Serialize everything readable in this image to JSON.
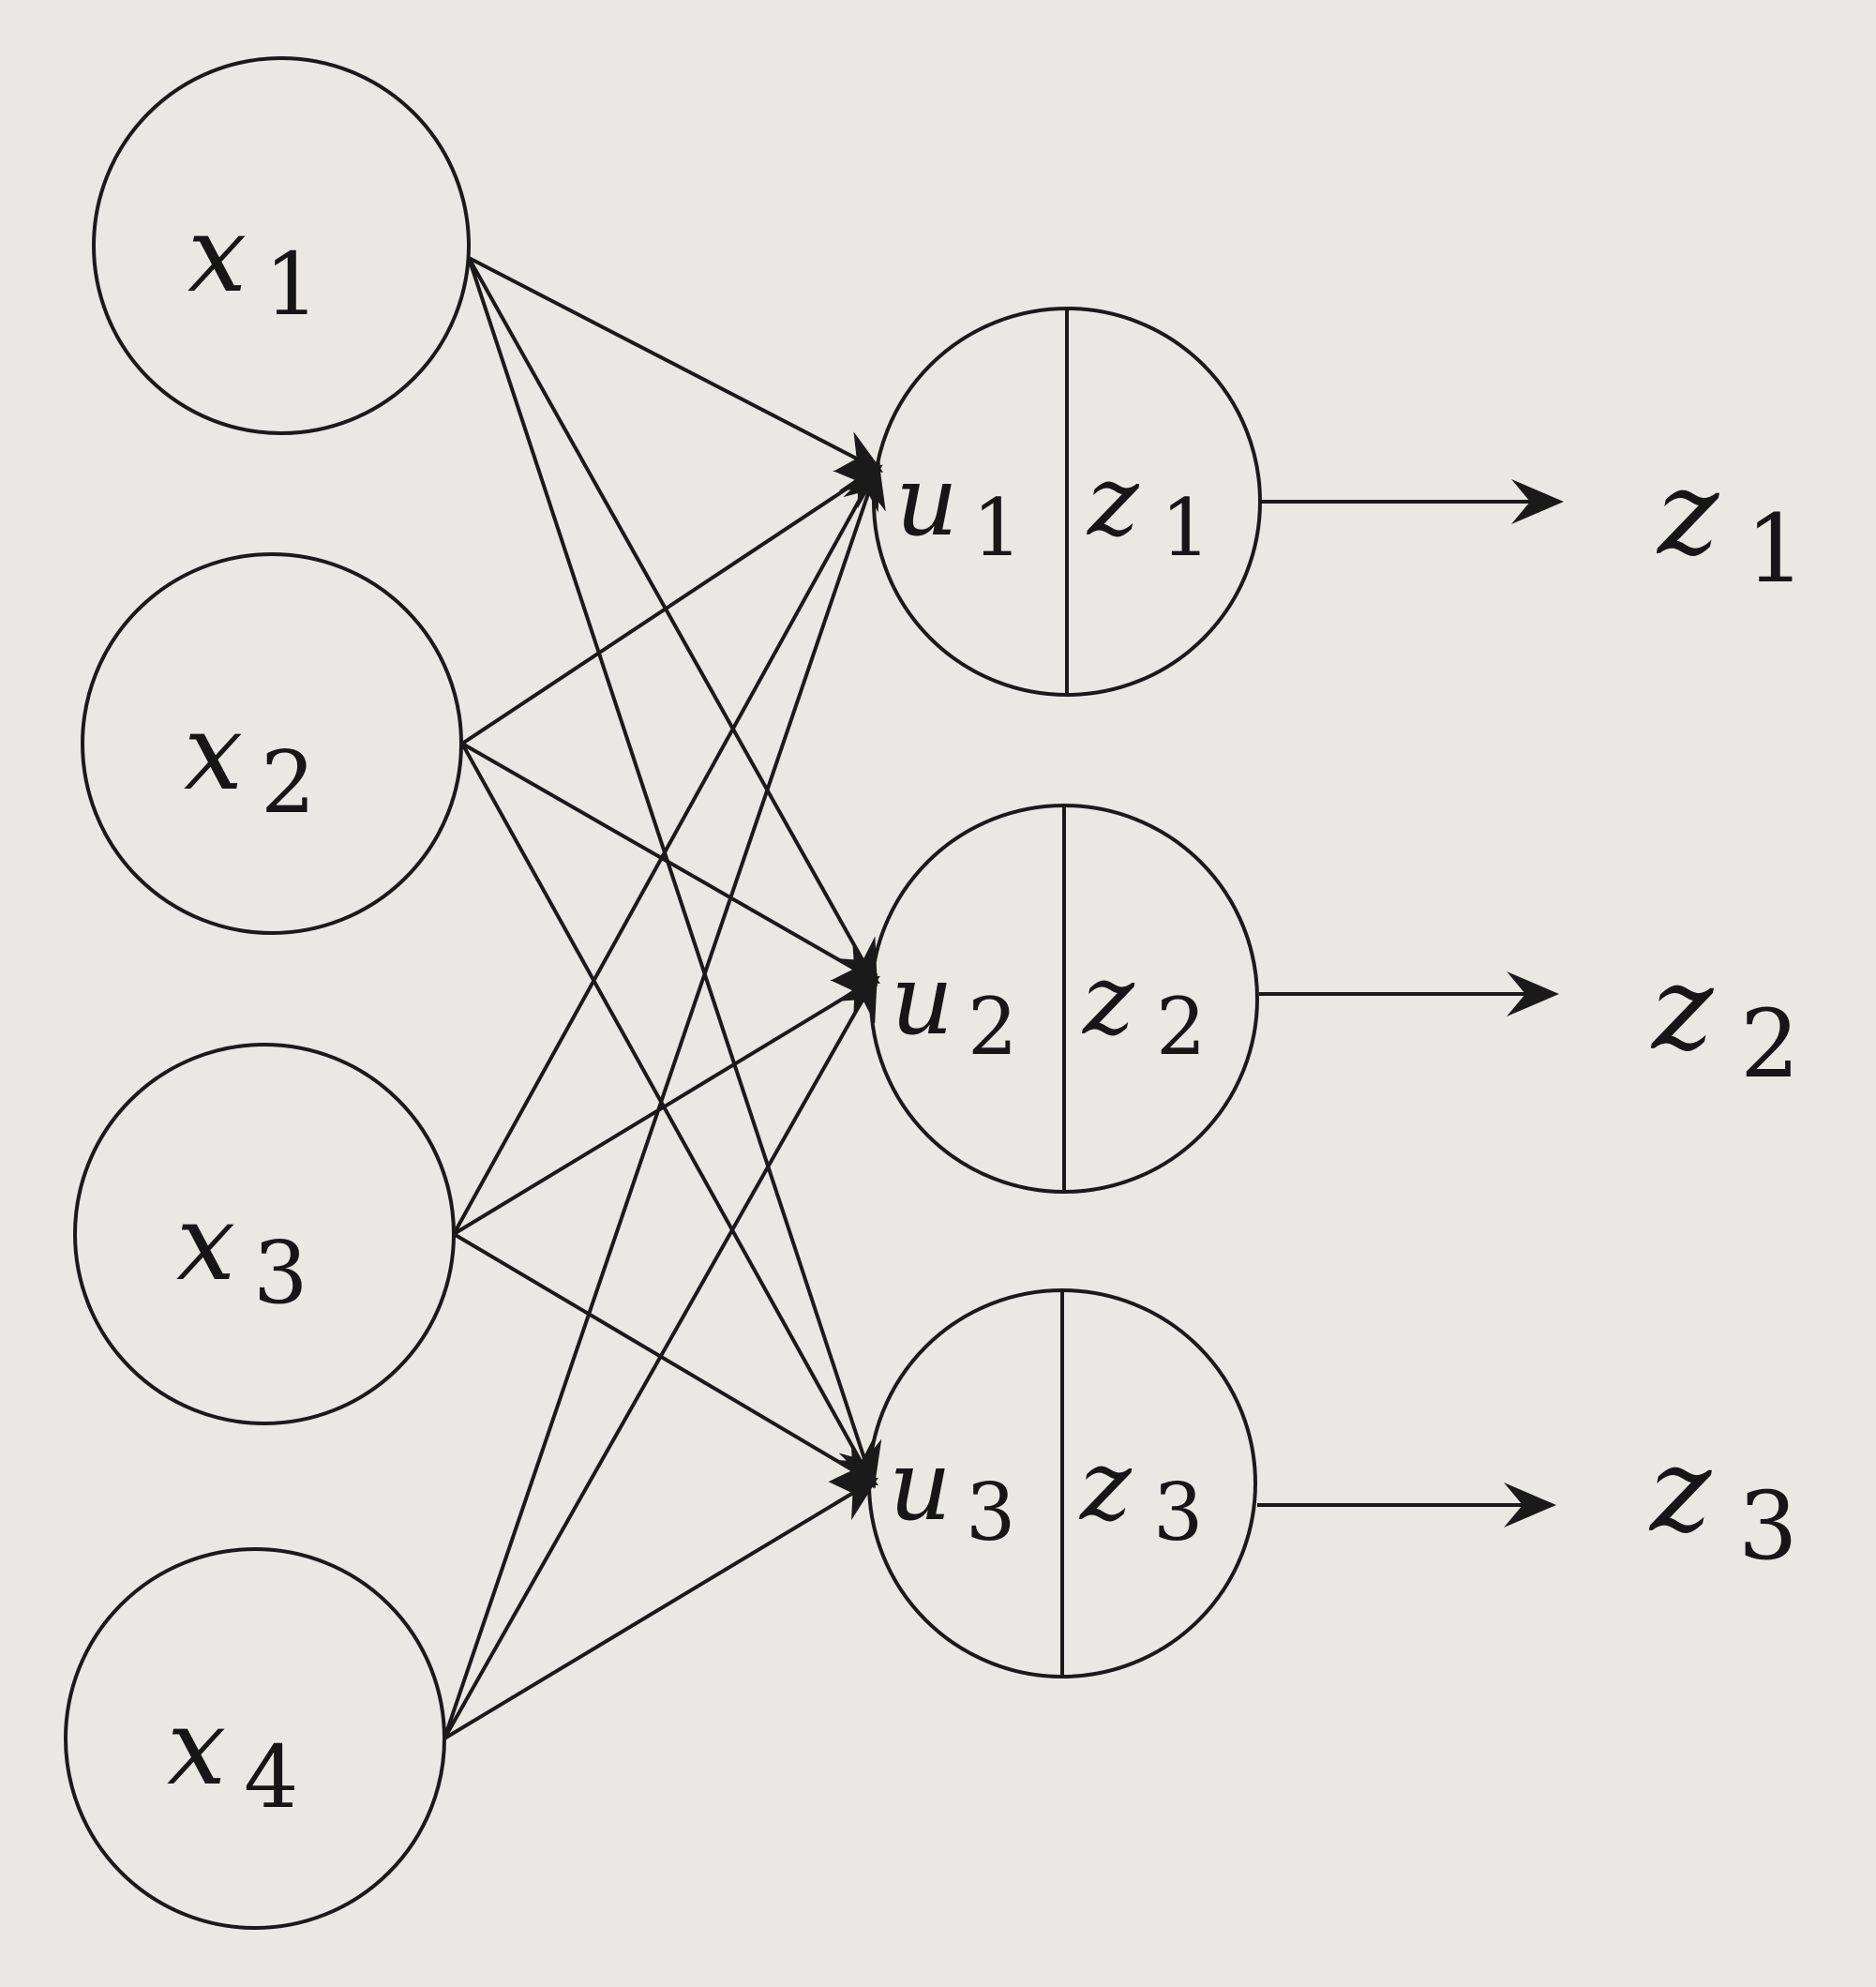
{
  "inputs": [
    {
      "var": "x",
      "sub": "1"
    },
    {
      "var": "x",
      "sub": "2"
    },
    {
      "var": "x",
      "sub": "3"
    },
    {
      "var": "x",
      "sub": "4"
    }
  ],
  "units": [
    {
      "u": "u",
      "u_sub": "1",
      "z": "z",
      "z_sub": "1"
    },
    {
      "u": "u",
      "u_sub": "2",
      "z": "z",
      "z_sub": "2"
    },
    {
      "u": "u",
      "u_sub": "3",
      "z": "z",
      "z_sub": "3"
    }
  ],
  "outputs": [
    {
      "var": "z",
      "sub": "1"
    },
    {
      "var": "z",
      "sub": "2"
    },
    {
      "var": "z",
      "sub": "3"
    }
  ],
  "connectivity": "fully-connected",
  "colors": {
    "background": "#e9e8e3",
    "ink": "#1a1a1a"
  }
}
